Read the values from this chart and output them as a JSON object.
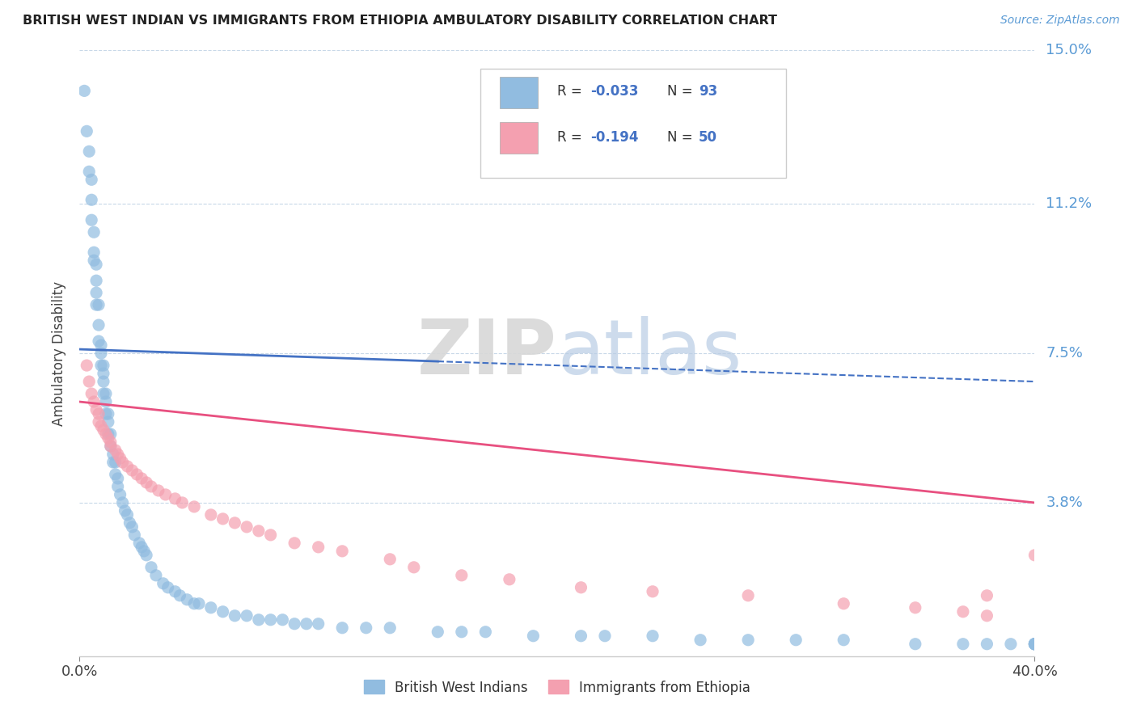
{
  "title": "BRITISH WEST INDIAN VS IMMIGRANTS FROM ETHIOPIA AMBULATORY DISABILITY CORRELATION CHART",
  "source_text": "Source: ZipAtlas.com",
  "ylabel": "Ambulatory Disability",
  "xmin": 0.0,
  "xmax": 0.4,
  "ymin": 0.0,
  "ymax": 0.15,
  "color_blue": "#91bce0",
  "color_pink": "#f4a0b0",
  "color_blue_line": "#4472c4",
  "color_pink_line": "#e85080",
  "color_grid": "#c8d8e8",
  "watermark_color": "#e0e8f0",
  "blue_x": [
    0.002,
    0.003,
    0.004,
    0.004,
    0.005,
    0.005,
    0.005,
    0.006,
    0.006,
    0.006,
    0.007,
    0.007,
    0.007,
    0.007,
    0.008,
    0.008,
    0.008,
    0.009,
    0.009,
    0.009,
    0.01,
    0.01,
    0.01,
    0.01,
    0.011,
    0.011,
    0.011,
    0.012,
    0.012,
    0.012,
    0.013,
    0.013,
    0.014,
    0.014,
    0.015,
    0.015,
    0.016,
    0.016,
    0.017,
    0.018,
    0.019,
    0.02,
    0.021,
    0.022,
    0.023,
    0.025,
    0.026,
    0.027,
    0.028,
    0.03,
    0.032,
    0.035,
    0.037,
    0.04,
    0.042,
    0.045,
    0.048,
    0.05,
    0.055,
    0.06,
    0.065,
    0.07,
    0.075,
    0.08,
    0.085,
    0.09,
    0.095,
    0.1,
    0.11,
    0.12,
    0.13,
    0.15,
    0.16,
    0.17,
    0.19,
    0.21,
    0.22,
    0.24,
    0.26,
    0.28,
    0.3,
    0.32,
    0.35,
    0.37,
    0.38,
    0.39,
    0.4,
    0.4,
    0.4,
    0.4,
    0.4,
    0.4,
    0.4
  ],
  "blue_y": [
    0.14,
    0.13,
    0.125,
    0.12,
    0.118,
    0.113,
    0.108,
    0.105,
    0.1,
    0.098,
    0.097,
    0.093,
    0.09,
    0.087,
    0.087,
    0.082,
    0.078,
    0.077,
    0.075,
    0.072,
    0.072,
    0.07,
    0.068,
    0.065,
    0.065,
    0.063,
    0.06,
    0.06,
    0.058,
    0.055,
    0.055,
    0.052,
    0.05,
    0.048,
    0.048,
    0.045,
    0.044,
    0.042,
    0.04,
    0.038,
    0.036,
    0.035,
    0.033,
    0.032,
    0.03,
    0.028,
    0.027,
    0.026,
    0.025,
    0.022,
    0.02,
    0.018,
    0.017,
    0.016,
    0.015,
    0.014,
    0.013,
    0.013,
    0.012,
    0.011,
    0.01,
    0.01,
    0.009,
    0.009,
    0.009,
    0.008,
    0.008,
    0.008,
    0.007,
    0.007,
    0.007,
    0.006,
    0.006,
    0.006,
    0.005,
    0.005,
    0.005,
    0.005,
    0.004,
    0.004,
    0.004,
    0.004,
    0.003,
    0.003,
    0.003,
    0.003,
    0.003,
    0.003,
    0.003,
    0.003,
    0.003,
    0.003,
    0.003
  ],
  "pink_x": [
    0.003,
    0.004,
    0.005,
    0.006,
    0.007,
    0.008,
    0.008,
    0.009,
    0.01,
    0.011,
    0.012,
    0.013,
    0.013,
    0.015,
    0.016,
    0.017,
    0.018,
    0.02,
    0.022,
    0.024,
    0.026,
    0.028,
    0.03,
    0.033,
    0.036,
    0.04,
    0.043,
    0.048,
    0.055,
    0.06,
    0.065,
    0.07,
    0.075,
    0.08,
    0.09,
    0.1,
    0.11,
    0.13,
    0.14,
    0.16,
    0.18,
    0.21,
    0.24,
    0.28,
    0.32,
    0.35,
    0.37,
    0.38,
    0.38,
    0.4
  ],
  "pink_y": [
    0.072,
    0.068,
    0.065,
    0.063,
    0.061,
    0.06,
    0.058,
    0.057,
    0.056,
    0.055,
    0.054,
    0.053,
    0.052,
    0.051,
    0.05,
    0.049,
    0.048,
    0.047,
    0.046,
    0.045,
    0.044,
    0.043,
    0.042,
    0.041,
    0.04,
    0.039,
    0.038,
    0.037,
    0.035,
    0.034,
    0.033,
    0.032,
    0.031,
    0.03,
    0.028,
    0.027,
    0.026,
    0.024,
    0.022,
    0.02,
    0.019,
    0.017,
    0.016,
    0.015,
    0.013,
    0.012,
    0.011,
    0.015,
    0.01,
    0.025
  ],
  "blue_trend_x0": 0.0,
  "blue_trend_x_solid_end": 0.15,
  "blue_trend_x1": 0.4,
  "blue_trend_y0": 0.076,
  "blue_trend_y1": 0.068,
  "pink_trend_x0": 0.0,
  "pink_trend_x1": 0.4,
  "pink_trend_y0": 0.063,
  "pink_trend_y1": 0.038,
  "ytick_vals": [
    0.038,
    0.075,
    0.112,
    0.15
  ],
  "ytick_labels": [
    "3.8%",
    "7.5%",
    "11.2%",
    "15.0%"
  ],
  "xtick_vals": [
    0.0,
    0.4
  ],
  "xtick_labels": [
    "0.0%",
    "40.0%"
  ]
}
